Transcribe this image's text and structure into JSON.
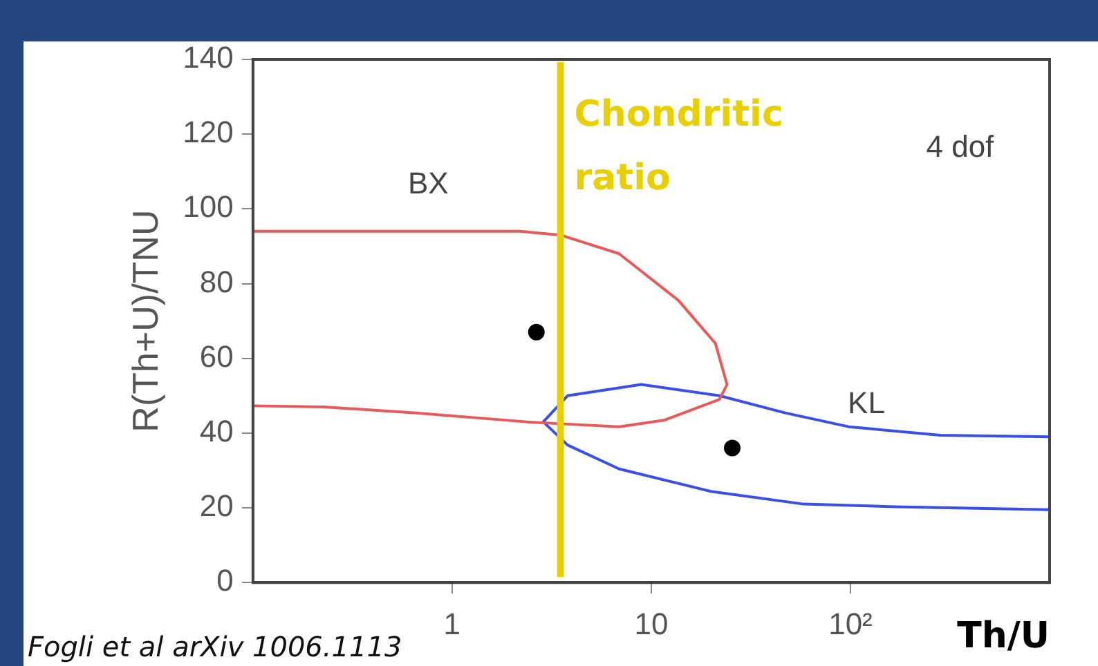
{
  "chart_data": {
    "type": "line",
    "xlabel": "Th/U",
    "ylabel": "R(Th+U)/TNU",
    "log": "x",
    "grid": false,
    "legend": false,
    "xlim": [
      0.1,
      1000
    ],
    "xticks": [
      {
        "value": 1,
        "label": "1"
      },
      {
        "value": 10,
        "label": "10"
      },
      {
        "value": 100,
        "label": "10²"
      }
    ],
    "ylim": [
      0,
      140
    ],
    "yticks": [
      0,
      20,
      40,
      60,
      80,
      100,
      120,
      140
    ],
    "series": [
      {
        "type": "line",
        "color": "#e85a5a",
        "marker": "none",
        "x": [
          0.1,
          0.3,
          1,
          2.2,
          3.5,
          6.9,
          13.7,
          21,
          24,
          22,
          11.7,
          6.9,
          3.8,
          2.37,
          0.66,
          0.226,
          0.1
        ],
        "values": [
          94,
          94,
          94,
          94,
          93,
          88,
          75.5,
          64,
          53,
          49,
          43.5,
          41.7,
          42.4,
          43,
          45.4,
          47,
          47.3
        ]
      },
      {
        "type": "line",
        "color": "#3a4ee8",
        "marker": "none",
        "x": [
          1000,
          283,
          98,
          47,
          22,
          8.9,
          3.8,
          2.87,
          3.8,
          6.9,
          19.9,
          58,
          167,
          1000
        ],
        "values": [
          39,
          39.4,
          41.7,
          45.4,
          50,
          53,
          50,
          43,
          36.8,
          30.4,
          24.4,
          21,
          20.3,
          19.5
        ]
      },
      {
        "type": "scatter",
        "color": "#000000",
        "marker": "circle",
        "x": [
          2.65,
          25.5
        ],
        "values": [
          67,
          36
        ]
      }
    ],
    "ref_lines": [
      {
        "axis": "x",
        "value": 3.5,
        "label": "Chondritic ratio",
        "color": "#e8d000"
      }
    ],
    "annotations": [
      "BX",
      "KL",
      "4 dof",
      "Fogli et al arXiv 1006.1113"
    ]
  }
}
